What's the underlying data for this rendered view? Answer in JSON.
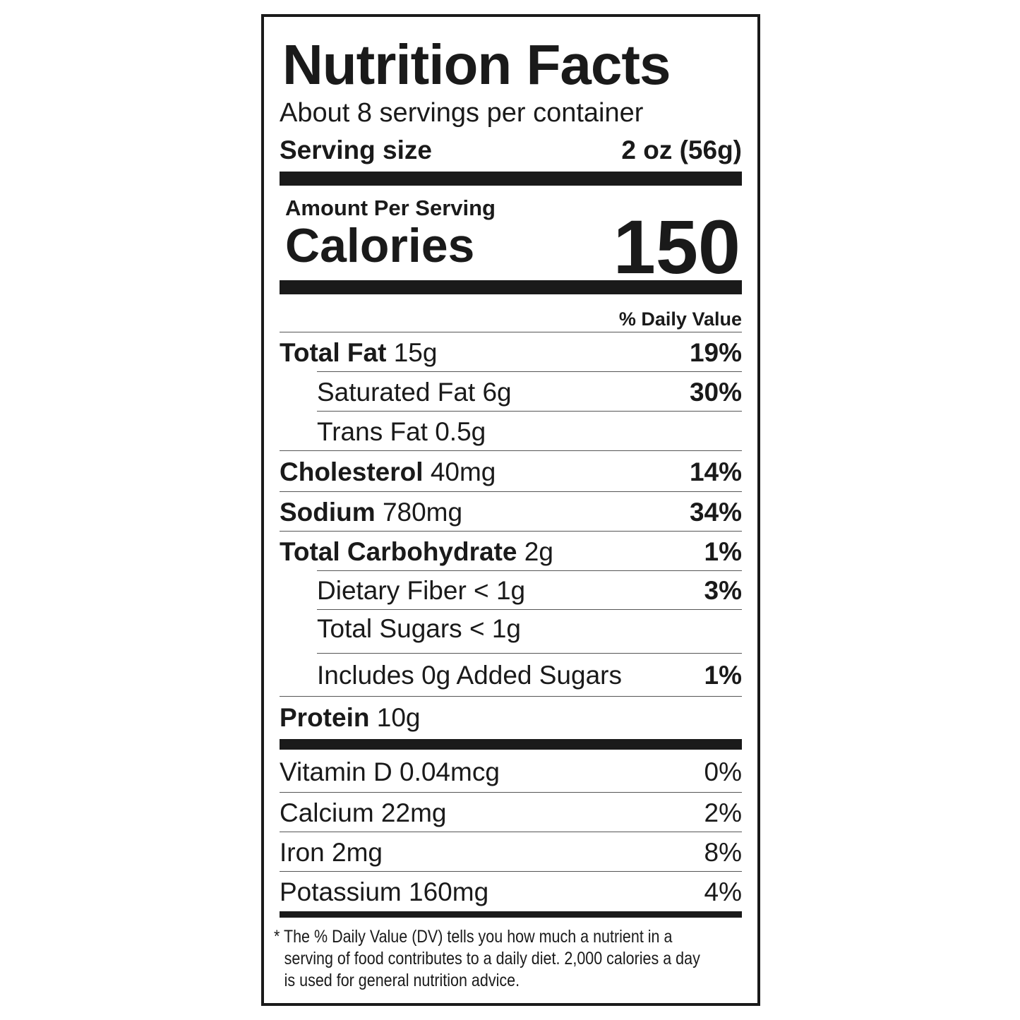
{
  "title": "Nutrition Facts",
  "servings_per_container": "About 8 servings per container",
  "serving_size": {
    "label": "Serving size",
    "value": "2 oz (56g)"
  },
  "amount_per_serving": "Amount Per Serving",
  "calories": {
    "label": "Calories",
    "value": "150"
  },
  "daily_value_header": "% Daily Value",
  "nutrients": [
    {
      "name": "Total Fat",
      "amount": "15g",
      "dv": "19%"
    },
    {
      "name": "Saturated Fat 6g",
      "amount": "",
      "dv": "30%"
    },
    {
      "name": "Trans Fat 0.5g",
      "amount": "",
      "dv": ""
    },
    {
      "name": "Cholesterol",
      "amount": "40mg",
      "dv": "14%"
    },
    {
      "name": "Sodium",
      "amount": "780mg",
      "dv": "34%"
    },
    {
      "name": "Total Carbohydrate",
      "amount": "2g",
      "dv": "1%"
    },
    {
      "name": "Dietary Fiber < 1g",
      "amount": "",
      "dv": "3%"
    },
    {
      "name": "Total Sugars < 1g",
      "amount": "",
      "dv": ""
    },
    {
      "name": "Includes 0g Added Sugars",
      "amount": "",
      "dv": "1%"
    },
    {
      "name": "Protein",
      "amount": "10g",
      "dv": ""
    }
  ],
  "vitamins": [
    {
      "name": "Vitamin D 0.04mcg",
      "dv": "0%"
    },
    {
      "name": "Calcium 22mg",
      "dv": "2%"
    },
    {
      "name": "Iron 2mg",
      "dv": "8%"
    },
    {
      "name": "Potassium 160mg",
      "dv": "4%"
    }
  ],
  "footnote": {
    "line1": "* The % Daily Value (DV) tells you how much a nutrient in a",
    "line2": "serving of food contributes to a daily diet. 2,000 calories a day",
    "line3": "is used for general nutrition advice."
  }
}
